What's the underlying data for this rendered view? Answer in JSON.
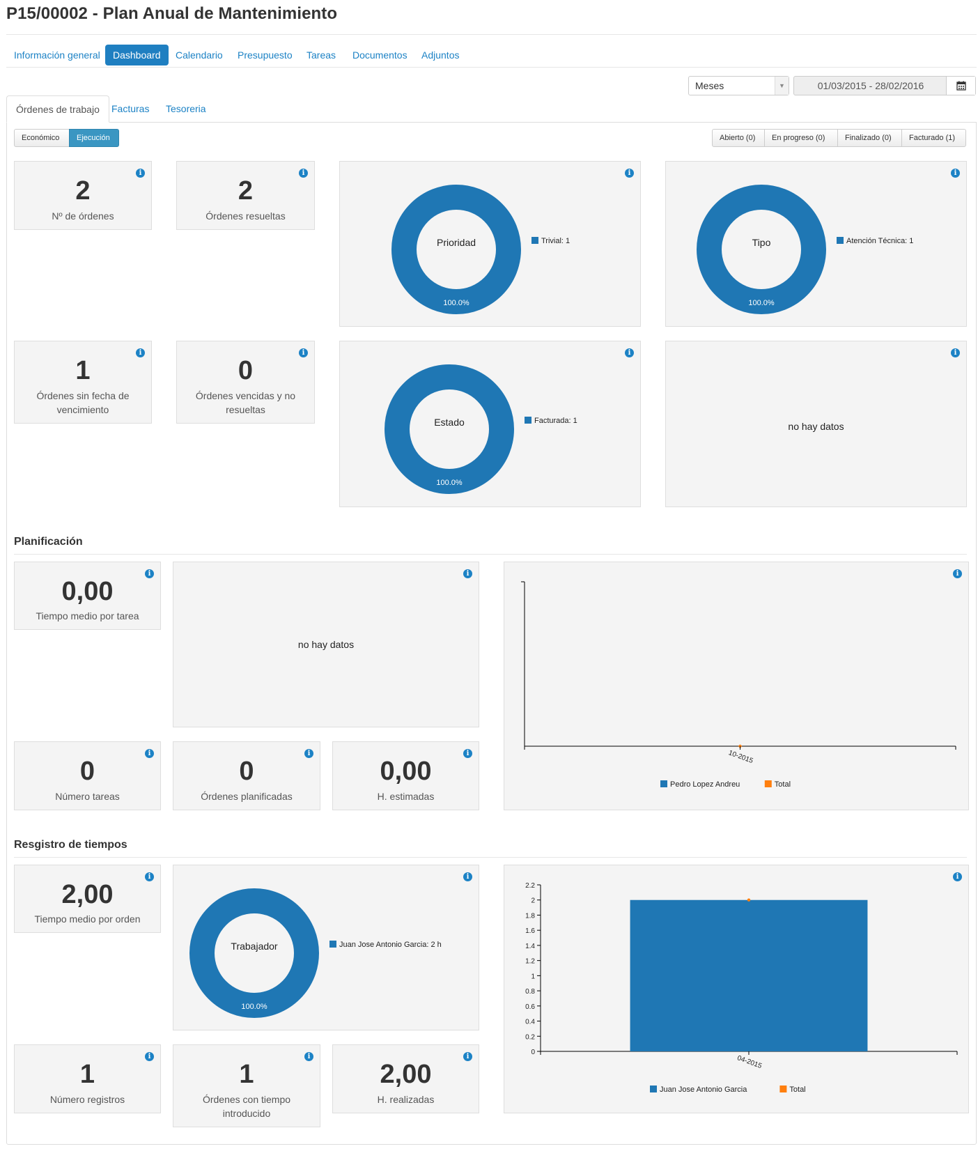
{
  "page_title": "P15/00002 - Plan Anual de Mantenimiento",
  "nav": {
    "items": [
      "Información general",
      "Dashboard",
      "Calendario",
      "Presupuesto",
      "Tareas",
      "Documentos",
      "Adjuntos"
    ],
    "active": "Dashboard"
  },
  "filters": {
    "period_select": "Meses",
    "date_range": "01/03/2015 - 28/02/2016"
  },
  "tabs": {
    "items": [
      "Órdenes de trabajo",
      "Facturas",
      "Tesoreria"
    ],
    "active": "Órdenes de trabajo"
  },
  "view_toggle": {
    "items": [
      "Económico",
      "Ejecución"
    ],
    "active": "Ejecución"
  },
  "status_filters": [
    "Abierto (0)",
    "En progreso (0)",
    "Finalizado (0)",
    "Facturado (1)"
  ],
  "orders": {
    "num_orders": {
      "value": "2",
      "label": "Nº de órdenes"
    },
    "resolved": {
      "value": "2",
      "label": "Órdenes resueltas"
    },
    "no_due_date": {
      "value": "1",
      "label": "Órdenes sin fecha de vencimiento"
    },
    "overdue": {
      "value": "0",
      "label": "Órdenes vencidas y no resueltas"
    },
    "no_data": "no hay datos"
  },
  "planning": {
    "title": "Planificación",
    "avg_time_task": {
      "value": "0,00",
      "label": "Tiempo medio por tarea"
    },
    "num_tasks": {
      "value": "0",
      "label": "Número tareas"
    },
    "planned_orders": {
      "value": "0",
      "label": "Órdenes planificadas"
    },
    "est_hours": {
      "value": "0,00",
      "label": "H. estimadas"
    },
    "no_data": "no hay datos"
  },
  "time_log": {
    "title": "Resgistro de tiempos",
    "avg_time_order": {
      "value": "2,00",
      "label": "Tiempo medio por orden"
    },
    "num_records": {
      "value": "1",
      "label": "Número registros"
    },
    "orders_with_time": {
      "value": "1",
      "label": "Órdenes con tiempo introducido"
    },
    "hours_done": {
      "value": "2,00",
      "label": "H. realizadas"
    }
  },
  "colors": {
    "primary": "#1f77b4",
    "total": "#ff7f0e",
    "link": "#1c82c5"
  },
  "chart_data": [
    {
      "type": "pie",
      "title": "Prioridad",
      "donut": true,
      "slices": [
        {
          "label": "Trivial",
          "value": 1,
          "percent_label": "100.0%"
        }
      ],
      "legend": [
        "Trivial: 1"
      ]
    },
    {
      "type": "pie",
      "title": "Tipo",
      "donut": true,
      "slices": [
        {
          "label": "Atención Técnica",
          "value": 1,
          "percent_label": "100.0%"
        }
      ],
      "legend": [
        "Atención Técnica: 1"
      ]
    },
    {
      "type": "pie",
      "title": "Estado",
      "donut": true,
      "slices": [
        {
          "label": "Facturada",
          "value": 1,
          "percent_label": "100.0%"
        }
      ],
      "legend": [
        "Facturada: 1"
      ]
    },
    {
      "type": "bar",
      "categories": [
        "10-2015"
      ],
      "series": [
        {
          "name": "Pedro Lopez Andreu",
          "values": [
            0
          ]
        },
        {
          "name": "Total",
          "values": [
            0
          ]
        }
      ]
    },
    {
      "type": "pie",
      "title": "Trabajador",
      "donut": true,
      "slices": [
        {
          "label": "Juan Jose Antonio Garcia",
          "value": 2,
          "percent_label": "100.0%"
        }
      ],
      "legend": [
        "Juan Jose Antonio Garcia: 2 h"
      ]
    },
    {
      "type": "bar",
      "categories": [
        "04-2015"
      ],
      "series": [
        {
          "name": "Juan Jose Antonio Garcia",
          "values": [
            2
          ]
        },
        {
          "name": "Total",
          "values": [
            2
          ]
        }
      ],
      "ylim": [
        0,
        2.2
      ],
      "yticks": [
        "0",
        "0.2",
        "0.4",
        "0.6",
        "0.8",
        "1",
        "1.2",
        "1.4",
        "1.6",
        "1.8",
        "2",
        "2.2"
      ]
    }
  ]
}
